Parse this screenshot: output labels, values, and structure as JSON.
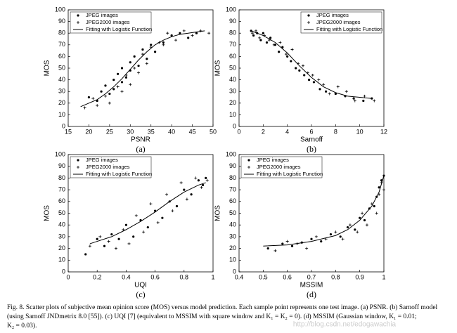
{
  "chart_data": [
    {
      "type": "scatter",
      "label": "(a)",
      "x_label": "PSNR",
      "y_label": "MOS",
      "xlim": [
        15,
        50
      ],
      "xticks": [
        15,
        20,
        25,
        30,
        35,
        40,
        45,
        50
      ],
      "ylim": [
        0,
        100
      ],
      "yticks": [
        0,
        10,
        20,
        30,
        40,
        50,
        60,
        70,
        80,
        90,
        100
      ],
      "legend": "upper left",
      "series": [
        {
          "name": "JPEG images",
          "marker": "dot",
          "color": "#000000",
          "x": [
            20,
            22,
            23,
            24,
            25,
            26,
            26,
            27,
            28,
            28,
            29,
            30,
            30,
            31,
            32,
            33,
            34,
            35,
            36,
            38,
            40,
            42,
            44,
            46
          ],
          "values": [
            25,
            22,
            30,
            35,
            28,
            40,
            32,
            45,
            38,
            50,
            42,
            55,
            48,
            60,
            52,
            66,
            58,
            70,
            64,
            72,
            78,
            80,
            76,
            80
          ]
        },
        {
          "name": "JPEG2000 images",
          "marker": "plus",
          "color": "#000000",
          "x": [
            19,
            21,
            22,
            24,
            25,
            27,
            28,
            29,
            30,
            31,
            32,
            33,
            34,
            35,
            37,
            38,
            39,
            41,
            43,
            45,
            47,
            49
          ],
          "values": [
            16,
            24,
            18,
            26,
            20,
            34,
            30,
            44,
            36,
            50,
            46,
            62,
            54,
            68,
            72,
            70,
            80,
            74,
            82,
            78,
            82,
            80
          ]
        },
        {
          "name": "Fitting with Logistic Function",
          "marker": "line",
          "color": "#000000",
          "x": [
            18,
            20,
            22,
            24,
            26,
            28,
            30,
            32,
            34,
            36,
            38,
            40,
            42,
            44,
            46,
            48
          ],
          "values": [
            17,
            20,
            23,
            28,
            34,
            41,
            49,
            57,
            64,
            70,
            74,
            77,
            79,
            80,
            81,
            82
          ]
        }
      ]
    },
    {
      "type": "scatter",
      "label": "(b)",
      "x_label": "Sarnoff",
      "y_label": "MOS",
      "xlim": [
        0,
        12
      ],
      "xticks": [
        0,
        2,
        4,
        6,
        8,
        10,
        12
      ],
      "ylim": [
        0,
        100
      ],
      "yticks": [
        0,
        10,
        20,
        30,
        40,
        50,
        60,
        70,
        80,
        90,
        100
      ],
      "legend": "upper right",
      "series": [
        {
          "name": "JPEG images",
          "marker": "dot",
          "color": "#000000",
          "x": [
            1,
            1.2,
            1.5,
            1.8,
            2,
            2.3,
            2.6,
            3,
            3.3,
            3.6,
            4,
            4.3,
            4.7,
            5,
            5.4,
            5.8,
            6.2,
            6.7,
            7.2,
            8,
            8.8,
            9.5,
            10.3,
            11
          ],
          "values": [
            82,
            78,
            80,
            74,
            80,
            72,
            76,
            70,
            64,
            68,
            60,
            56,
            50,
            48,
            44,
            40,
            38,
            32,
            30,
            28,
            26,
            24,
            22,
            24
          ]
        },
        {
          "name": "JPEG2000 images",
          "marker": "plus",
          "color": "#000000",
          "x": [
            1.1,
            1.4,
            1.7,
            2.1,
            2.5,
            2.9,
            3.4,
            3.9,
            4.4,
            4.9,
            5.3,
            5.7,
            6.1,
            6.6,
            7,
            7.5,
            8.2,
            8.9,
            9.6,
            10.4,
            11.2
          ],
          "values": [
            80,
            82,
            76,
            78,
            74,
            70,
            72,
            62,
            66,
            54,
            52,
            46,
            44,
            40,
            36,
            28,
            34,
            30,
            22,
            26,
            22
          ]
        },
        {
          "name": "Fitting with Logistic Function",
          "marker": "line",
          "color": "#000000",
          "x": [
            1,
            2,
            3,
            4,
            5,
            6,
            7,
            8,
            9,
            10,
            11
          ],
          "values": [
            82,
            78,
            72,
            63,
            52,
            42,
            34,
            29,
            26,
            25,
            24
          ]
        }
      ]
    },
    {
      "type": "scatter",
      "label": "(c)",
      "x_label": "UQI",
      "y_label": "MOS",
      "xlim": [
        0,
        1
      ],
      "xticks": [
        0,
        0.2,
        0.4,
        0.6,
        0.8,
        1
      ],
      "ylim": [
        0,
        100
      ],
      "yticks": [
        0,
        10,
        20,
        30,
        40,
        50,
        60,
        70,
        80,
        90,
        100
      ],
      "legend": "upper left",
      "series": [
        {
          "name": "JPEG images",
          "marker": "dot",
          "color": "#000000",
          "x": [
            0.12,
            0.2,
            0.25,
            0.3,
            0.35,
            0.4,
            0.45,
            0.5,
            0.55,
            0.6,
            0.65,
            0.7,
            0.75,
            0.8,
            0.85,
            0.9,
            0.93,
            0.95
          ],
          "values": [
            15,
            28,
            22,
            32,
            28,
            40,
            30,
            44,
            38,
            52,
            46,
            60,
            56,
            70,
            66,
            78,
            74,
            80
          ]
        },
        {
          "name": "JPEG2000 images",
          "marker": "plus",
          "color": "#000000",
          "x": [
            0.15,
            0.22,
            0.28,
            0.33,
            0.38,
            0.42,
            0.47,
            0.52,
            0.57,
            0.62,
            0.68,
            0.72,
            0.78,
            0.82,
            0.88,
            0.92,
            0.96
          ],
          "values": [
            22,
            30,
            26,
            20,
            36,
            24,
            48,
            34,
            58,
            42,
            66,
            52,
            76,
            62,
            80,
            72,
            78
          ]
        },
        {
          "name": "Fitting with Logistic Function",
          "marker": "line",
          "color": "#000000",
          "x": [
            0.15,
            0.2,
            0.3,
            0.4,
            0.5,
            0.6,
            0.7,
            0.8,
            0.9,
            0.95
          ],
          "values": [
            24,
            26,
            30,
            36,
            43,
            51,
            60,
            68,
            74,
            76
          ]
        }
      ]
    },
    {
      "type": "scatter",
      "label": "(d)",
      "x_label": "MSSIM",
      "y_label": "MOS",
      "xlim": [
        0.4,
        1
      ],
      "xticks": [
        0.4,
        0.5,
        0.6,
        0.7,
        0.8,
        0.9,
        1
      ],
      "ylim": [
        0,
        100
      ],
      "yticks": [
        0,
        10,
        20,
        30,
        40,
        50,
        60,
        70,
        80,
        90,
        100
      ],
      "legend": "upper left",
      "series": [
        {
          "name": "JPEG images",
          "marker": "dot",
          "color": "#000000",
          "x": [
            0.52,
            0.58,
            0.62,
            0.66,
            0.7,
            0.74,
            0.78,
            0.82,
            0.85,
            0.88,
            0.9,
            0.92,
            0.94,
            0.96,
            0.97,
            0.98,
            0.99,
            1
          ],
          "values": [
            20,
            24,
            22,
            25,
            28,
            26,
            32,
            30,
            38,
            36,
            46,
            44,
            54,
            56,
            64,
            72,
            78,
            82
          ]
        },
        {
          "name": "JPEG2000 images",
          "marker": "plus",
          "color": "#000000",
          "x": [
            0.55,
            0.6,
            0.64,
            0.68,
            0.72,
            0.76,
            0.8,
            0.83,
            0.86,
            0.89,
            0.91,
            0.93,
            0.95,
            0.97,
            0.98,
            0.99,
            1
          ],
          "values": [
            18,
            26,
            24,
            20,
            30,
            28,
            34,
            28,
            40,
            34,
            50,
            40,
            58,
            50,
            66,
            76,
            70
          ]
        },
        {
          "name": "Fitting with Logistic Function",
          "marker": "line",
          "color": "#000000",
          "x": [
            0.5,
            0.6,
            0.7,
            0.8,
            0.85,
            0.9,
            0.95,
            0.98,
            1
          ],
          "values": [
            22,
            23,
            26,
            31,
            36,
            44,
            56,
            68,
            82
          ]
        }
      ]
    }
  ],
  "caption": [
    "Fig. 8.    Scatter plots of subjective mean opinion score (MOS) versus model prediction. Each sample point represents one test image. (a) PSNR. (b) Sarnoff model",
    "(using Sarnoff JNDmetrix 8.0 [55]). (c) UQI [7] (equivalent to MSSIM with square window and K₁ = K₂ = 0). (d) MSSIM (Gaussian window, K₁ = 0.01;",
    "K₂ = 0.03)."
  ],
  "watermark": "http://blog.csdn.net/edogawachia"
}
